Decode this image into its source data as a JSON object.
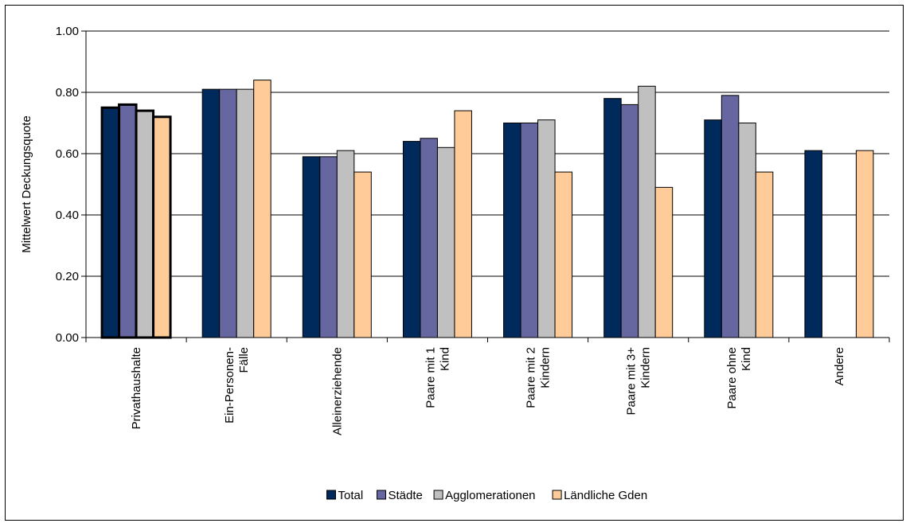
{
  "chart_data": {
    "type": "bar",
    "title": "",
    "xlabel": "",
    "ylabel": "Mittelwert Deckungsquote",
    "ylim": [
      0,
      1.0
    ],
    "yticks": [
      "0.00",
      "0.20",
      "0.40",
      "0.60",
      "0.80",
      "1.00"
    ],
    "grid": true,
    "legend_position": "bottom",
    "categories": [
      [
        "Privathaushalte"
      ],
      [
        "Ein-Personen-",
        "Fälle"
      ],
      [
        "Alleinerziehende"
      ],
      [
        "Paare mit 1",
        "Kind"
      ],
      [
        "Paare mit 2",
        "Kindern"
      ],
      [
        "Paare mit 3+",
        "Kindern"
      ],
      [
        "Paare ohne",
        "Kind"
      ],
      [
        "Andere"
      ]
    ],
    "series": [
      {
        "name": "Total",
        "color": "#002a5c",
        "values": [
          0.75,
          0.81,
          0.59,
          0.64,
          0.7,
          0.78,
          0.71,
          0.61
        ]
      },
      {
        "name": "Städte",
        "color": "#6666a0",
        "values": [
          0.76,
          0.81,
          0.59,
          0.65,
          0.7,
          0.76,
          0.79,
          null
        ]
      },
      {
        "name": "Agglomerationen",
        "color": "#c0c0c0",
        "values": [
          0.74,
          0.81,
          0.61,
          0.62,
          0.71,
          0.82,
          0.7,
          null
        ]
      },
      {
        "name": "Ländliche Gden",
        "color": "#ffcc99",
        "values": [
          0.72,
          0.84,
          0.54,
          0.74,
          0.54,
          0.49,
          0.54,
          0.61
        ]
      }
    ],
    "highlight_category_index": 0
  }
}
